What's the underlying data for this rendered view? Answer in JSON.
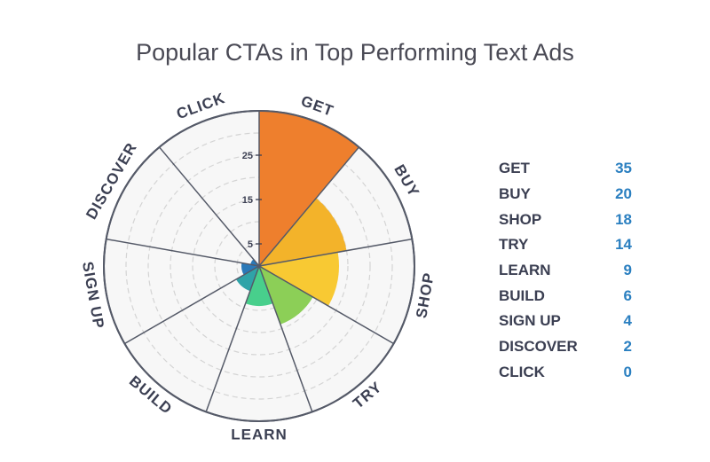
{
  "chart_data": {
    "type": "polar-bar",
    "title": "Popular CTAs in Top Performing Text Ads",
    "categories": [
      "GET",
      "BUY",
      "SHOP",
      "TRY",
      "LEARN",
      "BUILD",
      "SIGN UP",
      "DISCOVER",
      "CLICK"
    ],
    "values": [
      35,
      20,
      18,
      14,
      9,
      6,
      4,
      2,
      0
    ],
    "colors": [
      "#ee7f2d",
      "#f3b32a",
      "#f8c933",
      "#8ccf57",
      "#48cf8c",
      "#2fa3a8",
      "#2a79b8",
      "#2a79b8",
      "#2a79b8"
    ],
    "radial_axis": {
      "range": [
        0,
        35
      ],
      "ticks": [
        "5",
        "15",
        "25"
      ],
      "grid_values": [
        5,
        10,
        15,
        20,
        25,
        30
      ]
    },
    "legend_placement": "right"
  }
}
